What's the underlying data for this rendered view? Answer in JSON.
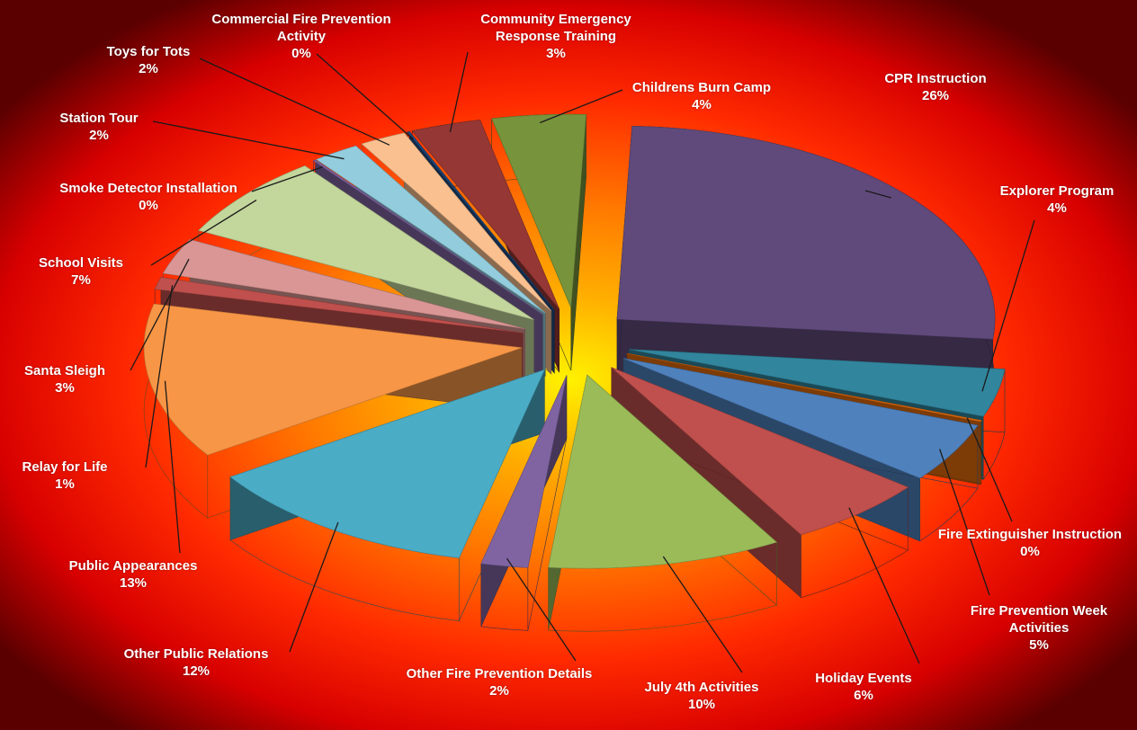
{
  "chart_data": {
    "type": "pie",
    "categories": [
      "CPR Instruction",
      "Explorer Program",
      "Fire Extinguisher Instruction",
      "Fire Prevention Week Activities",
      "Holiday Events",
      "July 4th Activities",
      "Other Fire Prevention Details",
      "Other Public Relations",
      "Public Appearances",
      "Relay for Life",
      "Santa Sleigh",
      "School Visits",
      "Smoke Detector Installation",
      "Station Tour",
      "Toys for Tots",
      "Commercial Fire Prevention Activity",
      "Community Emergency Response Training",
      "Childrens Burn Camp"
    ],
    "values": [
      26,
      4,
      0,
      5,
      6,
      10,
      2,
      12,
      13,
      1,
      3,
      7,
      0,
      2,
      2,
      0,
      3,
      4
    ],
    "value_labels": [
      "26%",
      "4%",
      "0%",
      "5%",
      "6%",
      "10%",
      "2%",
      "12%",
      "13%",
      "1%",
      "3%",
      "7%",
      "0%",
      "2%",
      "2%",
      "0%",
      "3%",
      "4%"
    ],
    "colors": [
      "#604a7b",
      "#31859c",
      "#e46c0a",
      "#4f81bd",
      "#c0504d",
      "#9bbb59",
      "#8064a2",
      "#4bacc6",
      "#f79646",
      "#c0504d",
      "#d99694",
      "#c3d69b",
      "#8064a2",
      "#93cddd",
      "#fac090",
      "#1f497d",
      "#953735",
      "#77933c"
    ]
  }
}
